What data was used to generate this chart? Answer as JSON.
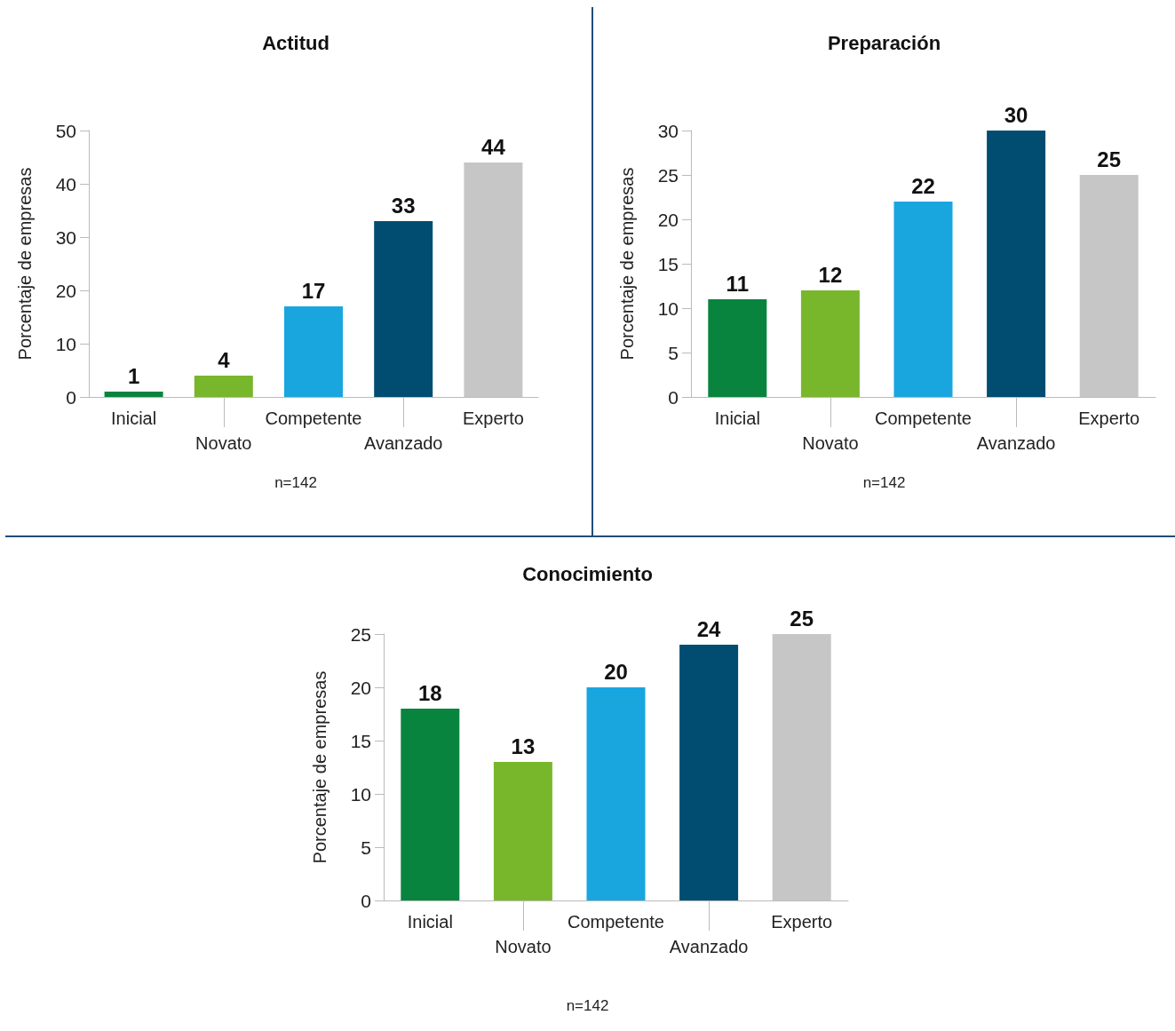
{
  "chart_data": [
    {
      "type": "bar",
      "title": "Actitud",
      "ylabel": "Porcentaje de empresas",
      "categories": [
        "Inicial",
        "Novato",
        "Competente",
        "Avanzado",
        "Experto"
      ],
      "values": [
        1,
        4,
        17,
        33,
        44
      ],
      "colors": [
        "#08843e",
        "#78b72b",
        "#19a6df",
        "#004d71",
        "#c6c6c6"
      ],
      "ylim": [
        0,
        50
      ],
      "yticks": [
        0,
        10,
        20,
        30,
        40,
        50
      ],
      "data_labels": true,
      "grid": false,
      "annotations": [
        "n=142"
      ]
    },
    {
      "type": "bar",
      "title": "Preparación",
      "ylabel": "Porcentaje de empresas",
      "categories": [
        "Inicial",
        "Novato",
        "Competente",
        "Avanzado",
        "Experto"
      ],
      "values": [
        11,
        12,
        22,
        30,
        25
      ],
      "colors": [
        "#08843e",
        "#78b72b",
        "#19a6df",
        "#004d71",
        "#c6c6c6"
      ],
      "ylim": [
        0,
        30
      ],
      "yticks": [
        0,
        5,
        10,
        15,
        20,
        25,
        30
      ],
      "data_labels": true,
      "grid": false,
      "annotations": [
        "n=142"
      ]
    },
    {
      "type": "bar",
      "title": "Conocimiento",
      "ylabel": "Porcentaje de empresas",
      "categories": [
        "Inicial",
        "Novato",
        "Competente",
        "Avanzado",
        "Experto"
      ],
      "values": [
        18,
        13,
        20,
        24,
        25
      ],
      "colors": [
        "#08843e",
        "#78b72b",
        "#19a6df",
        "#004d71",
        "#c6c6c6"
      ],
      "ylim": [
        0,
        25
      ],
      "yticks": [
        0,
        5,
        10,
        15,
        20,
        25
      ],
      "data_labels": true,
      "grid": false,
      "annotations": [
        "n=142"
      ]
    }
  ]
}
